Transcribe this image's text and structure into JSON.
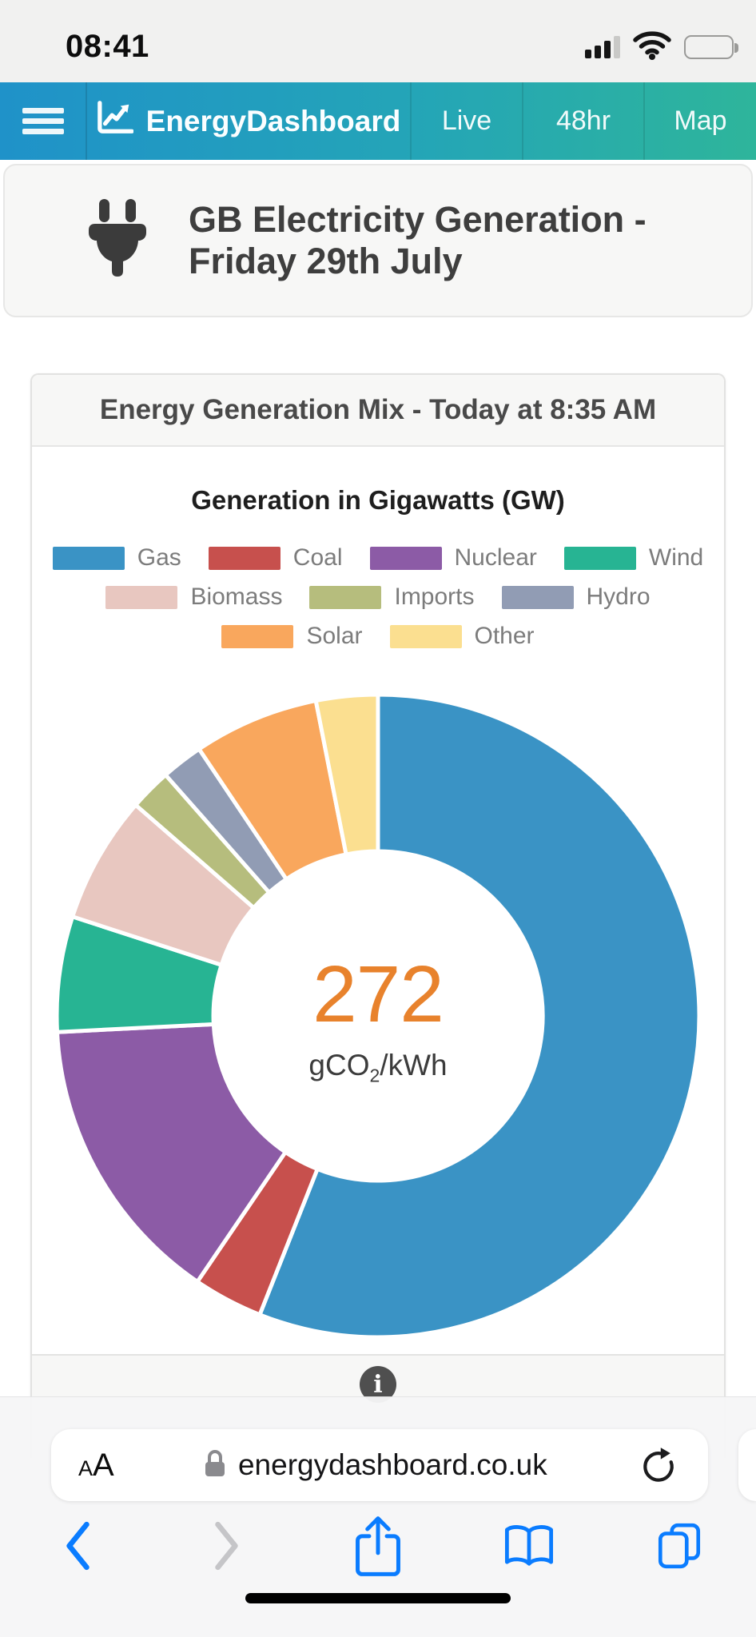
{
  "status_bar": {
    "time": "08:41",
    "cellular_bars": "3 of 4",
    "wifi": "full",
    "battery_percent": 80
  },
  "navbar": {
    "brand": "EnergyDashboard",
    "items": [
      {
        "label": "Live"
      },
      {
        "label": "48hr"
      },
      {
        "label": "Map"
      }
    ]
  },
  "page_header": {
    "title": "GB Electricity Generation - Friday 29th July",
    "title_lines": [
      "GB Electricity Generation -",
      "Friday 29th July"
    ]
  },
  "card": {
    "header_title": "Energy Generation Mix - Today at 8:35 AM"
  },
  "chart_data": {
    "type": "pie",
    "subtype": "donut",
    "title": "Generation in Gigawatts (GW)",
    "values_are": "percent share, estimated from arc angles (no numeric labels shown)",
    "start_angle_deg": 0,
    "direction": "clockwise",
    "inner_radius_ratio": 0.51,
    "legend_position": "top",
    "legend_rows": [
      4,
      3,
      2
    ],
    "series": [
      {
        "label": "Gas",
        "value": 56.0,
        "color": "#3a93c5"
      },
      {
        "label": "Coal",
        "value": 3.5,
        "color": "#c7504d"
      },
      {
        "label": "Nuclear",
        "value": 14.7,
        "color": "#8c5ba6"
      },
      {
        "label": "Wind",
        "value": 5.8,
        "color": "#27b493"
      },
      {
        "label": "Biomass",
        "value": 6.4,
        "color": "#e8c7c0"
      },
      {
        "label": "Imports",
        "value": 2.1,
        "color": "#b6bd7d"
      },
      {
        "label": "Hydro",
        "value": 2.1,
        "color": "#919cb4"
      },
      {
        "label": "Solar",
        "value": 6.3,
        "color": "#f9a75d"
      },
      {
        "label": "Other",
        "value": 3.1,
        "color": "#fbdf90"
      }
    ],
    "center_label": {
      "value": "272",
      "value_color": "#e8822c",
      "unit_prefix": "gCO",
      "unit_sub": "2",
      "unit_suffix": "/kWh"
    }
  },
  "card_footer": {
    "info_glyph": "i"
  },
  "safari": {
    "reader_label": "AA",
    "url": "energydashboard.co.uk",
    "toolbar": [
      "back",
      "forward",
      "share",
      "bookmarks",
      "tabs"
    ]
  },
  "colors": {
    "nav_gradient_left": "#1f92c9",
    "nav_gradient_right": "#2eb59b",
    "accent_blue_ios": "#0a7cff",
    "center_value_orange": "#e8822c"
  }
}
